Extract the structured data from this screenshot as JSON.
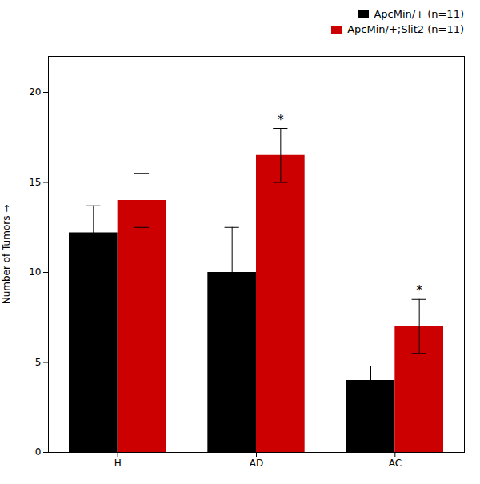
{
  "chart_data": {
    "type": "bar",
    "categories": [
      "H",
      "AD",
      "AC"
    ],
    "series": [
      {
        "name": "ApcMin/+ (n=11)",
        "color": "#000000",
        "values": [
          12.2,
          10.0,
          4.0
        ],
        "errors": [
          1.5,
          2.5,
          0.8
        ]
      },
      {
        "name": "ApcMin/+;Slit2 (n=11)",
        "color": "#cc0000",
        "values": [
          14.0,
          16.5,
          7.0
        ],
        "errors": [
          1.5,
          1.5,
          1.5
        ]
      }
    ],
    "ylabel": "Number of Tumors",
    "ylim": [
      0,
      22
    ],
    "yticks": [
      0,
      5,
      10,
      15,
      20
    ],
    "annotations": [
      {
        "text": "*",
        "category": "AD",
        "series": "ApcMin/+;Slit2 (n=11)"
      },
      {
        "text": "*",
        "category": "AC",
        "series": "ApcMin/+;Slit2 (n=11)"
      }
    ],
    "legend": "upper right",
    "grid": false
  }
}
